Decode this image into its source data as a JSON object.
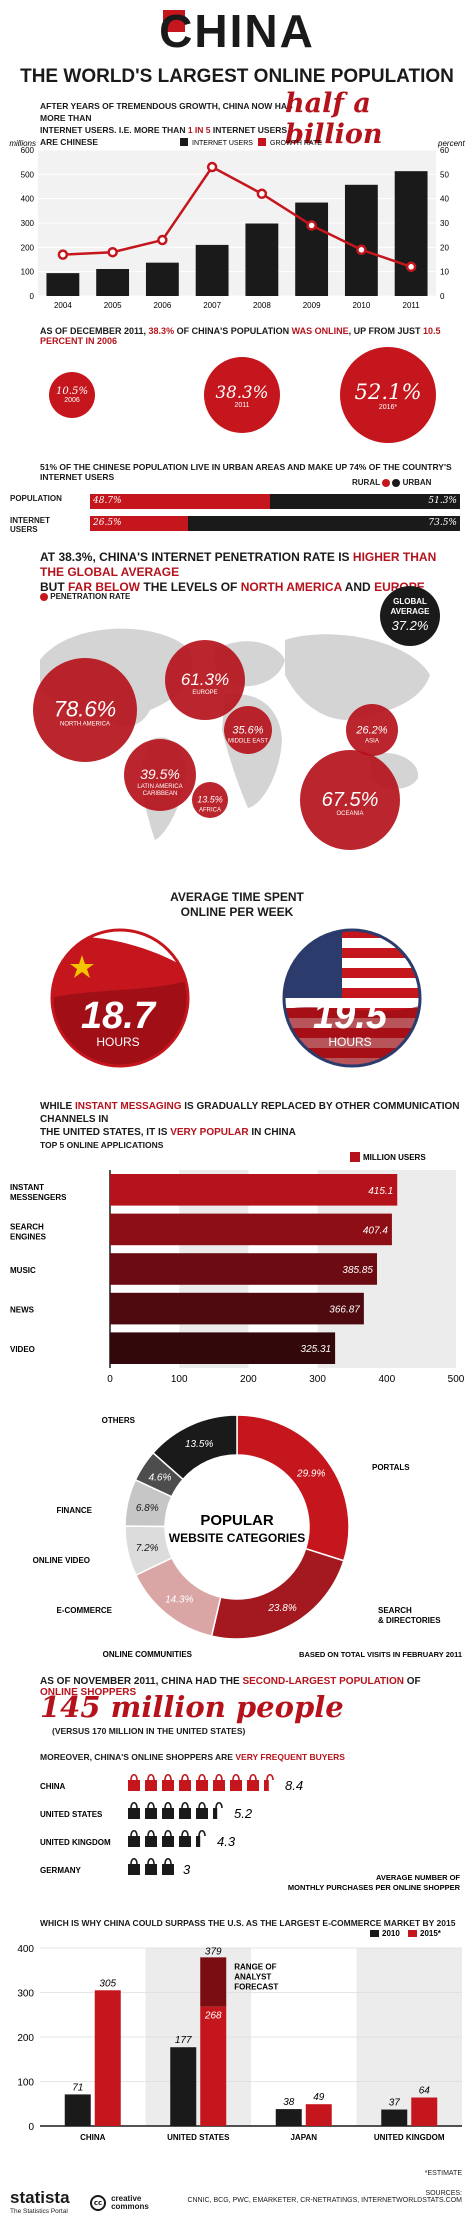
{
  "header": {
    "title": "CHINA",
    "subtitle": "THE WORLD'S LARGEST ONLINE POPULATION",
    "intro_a": "AFTER YEARS OF TREMENDOUS GROWTH, CHINA NOW HAS MORE THAN",
    "intro_b_pre": "INTERNET USERS. I.E. MORE THAN",
    "intro_b_red": "1 IN 5",
    "intro_b_post": "INTERNET USERS ARE CHINESE",
    "highlight": "half a billion"
  },
  "users_chart": {
    "type": "bar",
    "ylabel_left": "millions",
    "ylabel_right": "percent",
    "legend_users": "INTERNET USERS",
    "legend_growth": "GROWTH RATE",
    "categories": [
      "2004",
      "2005",
      "2006",
      "2007",
      "2008",
      "2009",
      "2010",
      "2011"
    ],
    "users": [
      94,
      111,
      137,
      210,
      298,
      384,
      457,
      513
    ],
    "growth": [
      17,
      18,
      23,
      53,
      42,
      29,
      19,
      12
    ],
    "left_ticks": [
      "0",
      "100",
      "200",
      "300",
      "400",
      "500",
      "600"
    ],
    "right_ticks": [
      "0",
      "10",
      "20",
      "30",
      "40",
      "50",
      "60"
    ],
    "ylim_left": [
      0,
      600
    ],
    "ylim_right": [
      0,
      60
    ]
  },
  "online": {
    "line_pre": "AS OF DECEMBER 2011,",
    "line_red1": "38.3%",
    "line_mid1": "OF CHINA'S POPULATION",
    "line_red2": "WAS ONLINE",
    "line_mid2": ", UP FROM JUST",
    "line_red3": "10.5 PERCENT IN 2006",
    "circles": [
      {
        "value": "10.5%",
        "label": "2006"
      },
      {
        "value": "38.3%",
        "label": "2011"
      },
      {
        "value": "52.1%",
        "label": "2016*"
      }
    ]
  },
  "urban": {
    "text_a": "51% OF THE CHINESE POPULATION LIVE IN URBAN AREAS AND MAKE UP 74% OF THE COUNTRY'S INTERNET USERS",
    "legend_rural": "RURAL",
    "legend_urban": "URBAN",
    "rows": [
      {
        "label": "POPULATION",
        "rural": 48.7,
        "urban": 51.3,
        "rural_label": "48.7%",
        "urban_label": "51.3%"
      },
      {
        "label_a": "INTERNET",
        "label_b": "USERS",
        "rural": 26.5,
        "urban": 73.5,
        "rural_label": "26.5%",
        "urban_label": "73.5%"
      }
    ]
  },
  "penetration": {
    "text_a_pre": "AT 38.3%, CHINA'S INTERNET PENETRATION RATE IS",
    "text_a_red": "HIGHER THAN THE GLOBAL AVERAGE",
    "text_b_pre": "BUT",
    "text_b_red": "FAR BELOW",
    "text_b_mid": "THE LEVELS OF",
    "text_b_red2": "NORTH AMERICA",
    "text_b_and": "AND",
    "text_b_red3": "EUROPE",
    "legend": "PENETRATION RATE",
    "global_label_a": "GLOBAL",
    "global_label_b": "AVERAGE",
    "global_value": "37.2%",
    "regions": [
      {
        "value": "78.6%",
        "name": "NORTH AMERICA"
      },
      {
        "value": "61.3%",
        "name": "EUROPE"
      },
      {
        "value": "35.6%",
        "name": "MIDDLE EAST"
      },
      {
        "value": "26.2%",
        "name": "ASIA"
      },
      {
        "value": "39.5%",
        "name": "LATIN AMERICA",
        "name_b": "CARIBBEAN"
      },
      {
        "value": "13.5%",
        "name": "AFRICA"
      },
      {
        "value": "67.5%",
        "name": "OCEANIA"
      }
    ]
  },
  "time": {
    "title_a": "AVERAGE TIME SPENT",
    "title_b": "ONLINE PER WEEK",
    "china_value": "18.7",
    "usa_value": "19.5",
    "unit": "HOURS"
  },
  "apps": {
    "text_a_pre": "WHILE",
    "text_a_red": "INSTANT MESSAGING",
    "text_a_post": "IS GRADUALLY REPLACED BY OTHER COMMUNICATION CHANNELS IN",
    "text_b_pre": "THE UNITED STATES, IT IS",
    "text_b_red": "VERY POPULAR",
    "text_b_post": "IN CHINA",
    "subtitle": "TOP 5 ONLINE APPLICATIONS",
    "legend": "MILLION USERS",
    "type": "bar",
    "items": [
      {
        "label_a": "INSTANT",
        "label_b": "MESSENGERS",
        "value": 415.1,
        "value_label": "415.1"
      },
      {
        "label_a": "SEARCH",
        "label_b": "ENGINES",
        "value": 407.4,
        "value_label": "407.4"
      },
      {
        "label_a": "MUSIC",
        "label_b": "",
        "value": 385.85,
        "value_label": "385.85"
      },
      {
        "label_a": "NEWS",
        "label_b": "",
        "value": 366.87,
        "value_label": "366.87"
      },
      {
        "label_a": "VIDEO",
        "label_b": "",
        "value": 325.31,
        "value_label": "325.31"
      }
    ],
    "ticks": [
      "0",
      "100",
      "200",
      "300",
      "400",
      "500"
    ],
    "xlim": [
      0,
      500
    ]
  },
  "categories": {
    "type": "pie",
    "title_a": "POPULAR",
    "title_b": "WEBSITE CATEGORIES",
    "note": "BASED ON TOTAL VISITS IN FEBRUARY 2011",
    "slices": [
      {
        "name": "PORTALS",
        "value": 29.9,
        "label": "29.9%",
        "color": "#c4161c"
      },
      {
        "name": "SEARCH & DIRECTORIES",
        "name_a": "SEARCH",
        "name_b": "& DIRECTORIES",
        "value": 23.8,
        "label": "23.8%",
        "color": "#a3191f"
      },
      {
        "name": "ONLINE COMMUNITIES",
        "value": 14.3,
        "label": "14.3%",
        "color": "#d9a5a5"
      },
      {
        "name": "E-COMMERCE",
        "value": 7.2,
        "label": "7.2%",
        "color": "#dcdcdc"
      },
      {
        "name": "ONLINE VIDEO",
        "value": 6.8,
        "label": "6.8%",
        "color": "#c6c6c6"
      },
      {
        "name": "FINANCE",
        "value": 4.6,
        "label": "4.6%",
        "color": "#4d4d4d"
      },
      {
        "name": "OTHERS",
        "value": 13.5,
        "label": "13.5%",
        "color": "#1a1a1a"
      }
    ]
  },
  "shoppers": {
    "text_pre": "AS OF NOVEMBER 2011, CHINA HAD THE",
    "text_red": "SECOND-LARGEST POPULATION",
    "text_mid": "OF",
    "text_red2": "ONLINE SHOPPERS",
    "big": "145 million people",
    "sub": "(VERSUS 170 MILLION IN THE UNITED STATES)",
    "freq_pre": "MOREOVER, CHINA'S ONLINE SHOPPERS ARE",
    "freq_red": "VERY FREQUENT BUYERS",
    "note_a": "AVERAGE NUMBER OF",
    "note_b": "MONTHLY PURCHASES PER ONLINE SHOPPER",
    "rows": [
      {
        "country": "CHINA",
        "value": 8.4,
        "label": "8.4",
        "color": "#c4161c"
      },
      {
        "country": "UNITED STATES",
        "value": 5.2,
        "label": "5.2",
        "color": "#1a1a1a"
      },
      {
        "country": "UNITED KINGDOM",
        "value": 4.3,
        "label": "4.3",
        "color": "#1a1a1a"
      },
      {
        "country": "GERMANY",
        "value": 3,
        "label": "3",
        "color": "#1a1a1a"
      }
    ]
  },
  "ecommerce": {
    "type": "bar",
    "text": "WHICH IS WHY CHINA COULD SURPASS THE U.S. AS THE LARGEST E-COMMERCE MARKET BY 2015",
    "legend_2010": "2010",
    "legend_2015": "2015*",
    "range_a": "RANGE OF",
    "range_b": "ANALYST",
    "range_c": "FORECAST",
    "categories": [
      "CHINA",
      "UNITED STATES",
      "JAPAN",
      "UNITED KINGDOM"
    ],
    "series": [
      {
        "name": "2010",
        "values": [
          71,
          177,
          38,
          37
        ]
      },
      {
        "name": "2015*",
        "values": [
          305,
          268,
          49,
          64
        ]
      }
    ],
    "us_range_top": 379,
    "us_range_top_label": "379",
    "ticks": [
      "0",
      "100",
      "200",
      "300",
      "400"
    ],
    "ylim": [
      0,
      400
    ]
  },
  "footer": {
    "brand": "statista",
    "brand_sub": "The Statistics Portal",
    "cc_a": "creative",
    "cc_b": "commons",
    "estimate": "*ESTIMATE",
    "sources_label": "SOURCES:",
    "sources": "CNNIC, BCG, PWC, EMARKETER, CR-NETRATINGS, INTERNETWORLDSTATS.COM"
  }
}
